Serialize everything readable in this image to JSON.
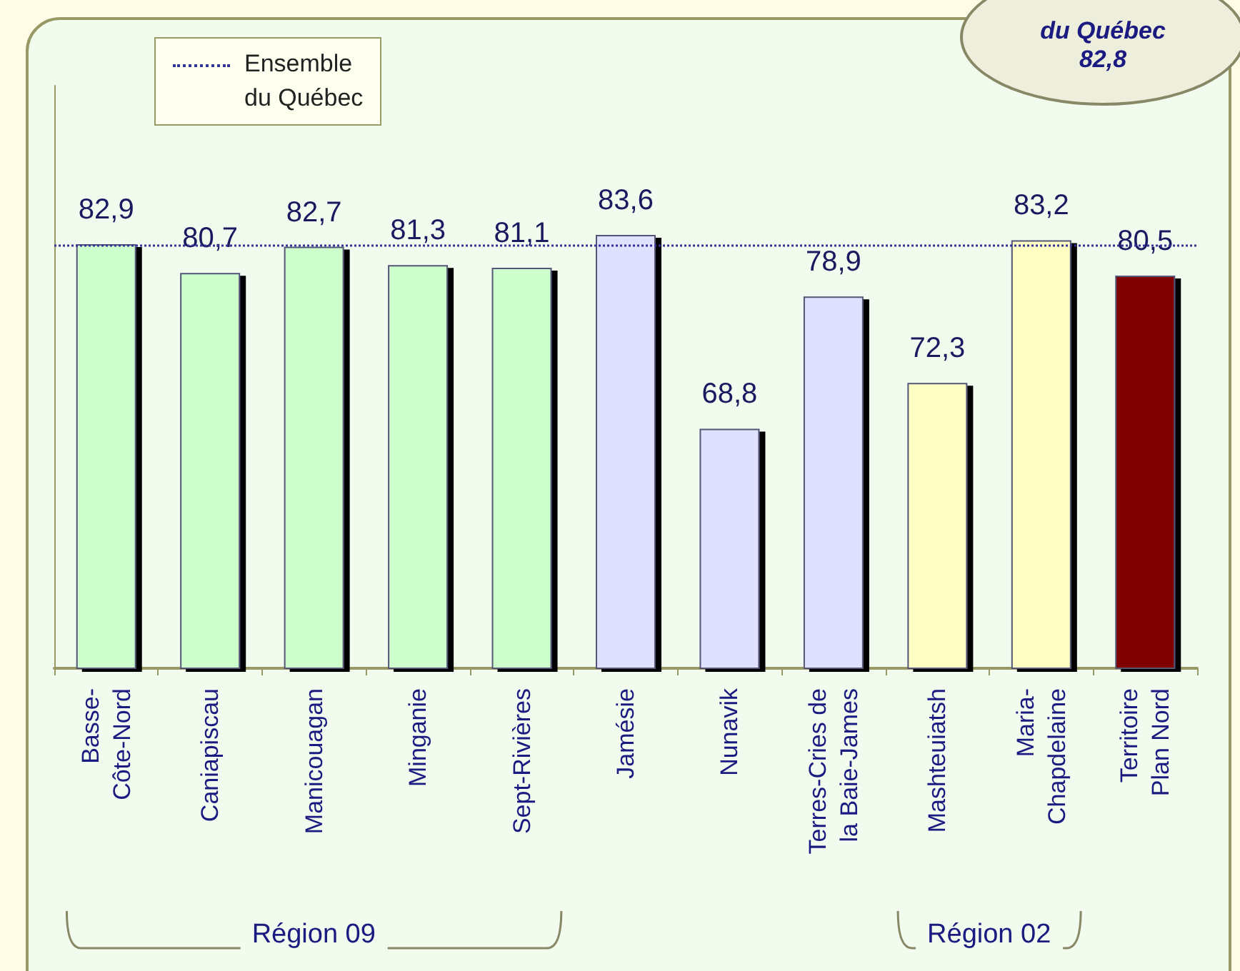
{
  "chart_data": {
    "type": "bar",
    "categories": [
      "Basse-Côte-Nord",
      "Caniapiscau",
      "Manicouagan",
      "Minganie",
      "Sept-Rivières",
      "Jamésie",
      "Nunavik",
      "Terres-Cries de la Baie-James",
      "Mashteuiatsh",
      "Maria-Chapdelaine",
      "Territoire Plan Nord"
    ],
    "values": [
      82.9,
      80.7,
      82.7,
      81.3,
      81.1,
      83.6,
      68.8,
      78.9,
      72.3,
      83.2,
      80.5
    ],
    "value_labels": [
      "82,9",
      "80,7",
      "82,7",
      "81,3",
      "81,1",
      "83,6",
      "68,8",
      "78,9",
      "72,3",
      "83,2",
      "80,5"
    ],
    "colors": [
      "#ccffcc",
      "#ccffcc",
      "#ccffcc",
      "#ccffcc",
      "#ccffcc",
      "#e0e0ff",
      "#e0e0ff",
      "#e0e0ff",
      "#ffffc4",
      "#ffffc4",
      "#800000"
    ],
    "ylim": [
      50.5,
      95
    ],
    "tick_labels": "x",
    "grid": false,
    "legend": "top left",
    "ref_lines": [
      {
        "axis": "y",
        "value": 82.8,
        "label": "Ensemble du Québec",
        "color": "#333399",
        "line_style": "dotted"
      }
    ],
    "annotations": [
      "du Québec 82,8",
      "Région 09",
      "Région 02"
    ]
  }
}
